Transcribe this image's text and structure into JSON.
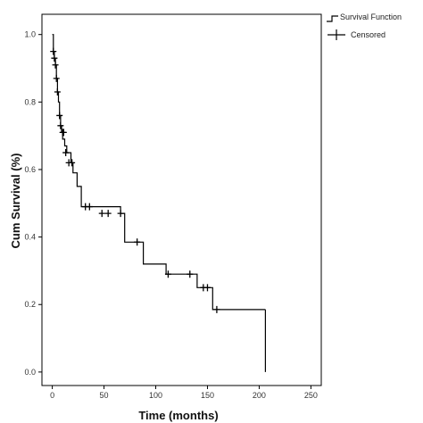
{
  "chart_data": {
    "type": "line",
    "title": "",
    "xlabel": "Time (months)",
    "ylabel": "Cum Survival (%)",
    "xlim": [
      -10,
      260
    ],
    "ylim": [
      -0.04,
      1.06
    ],
    "x_ticks": [
      0,
      50,
      100,
      150,
      200,
      250
    ],
    "x_tick_labels": [
      "0",
      "50",
      "100",
      "150",
      "200",
      "250"
    ],
    "y_ticks": [
      0.0,
      0.2,
      0.4,
      0.6,
      0.8,
      1.0
    ],
    "y_tick_labels": [
      "0.0",
      "0.2",
      "0.4",
      "0.6",
      "0.8",
      "1.0"
    ],
    "grid": false,
    "legend_position": "top-right",
    "series": [
      {
        "name": "Survival Function",
        "style": "step",
        "color": "#000000",
        "x": [
          0,
          1,
          2,
          3,
          4,
          5,
          6,
          7,
          8,
          9,
          10,
          12,
          14,
          18,
          20,
          24,
          28,
          66,
          70,
          82,
          88,
          110,
          140,
          150,
          155,
          206
        ],
        "y": [
          1.0,
          0.95,
          0.93,
          0.91,
          0.87,
          0.83,
          0.8,
          0.76,
          0.73,
          0.71,
          0.69,
          0.67,
          0.65,
          0.62,
          0.59,
          0.55,
          0.49,
          0.47,
          0.385,
          0.385,
          0.32,
          0.29,
          0.25,
          0.25,
          0.185,
          0.185
        ]
      },
      {
        "name": "Censored",
        "style": "marker-plus",
        "color": "#000000",
        "x": [
          1,
          2,
          3,
          4,
          5,
          7,
          8,
          10,
          11,
          13,
          16,
          19,
          32,
          36,
          48,
          54,
          66,
          82,
          112,
          133,
          146,
          150,
          159
        ],
        "y": [
          0.95,
          0.93,
          0.91,
          0.87,
          0.83,
          0.76,
          0.73,
          0.71,
          0.71,
          0.65,
          0.62,
          0.62,
          0.49,
          0.49,
          0.47,
          0.47,
          0.47,
          0.385,
          0.29,
          0.29,
          0.25,
          0.25,
          0.185
        ]
      }
    ],
    "end_drop": {
      "x": 206,
      "y_from": 0.185,
      "y_to": 0.0
    }
  }
}
